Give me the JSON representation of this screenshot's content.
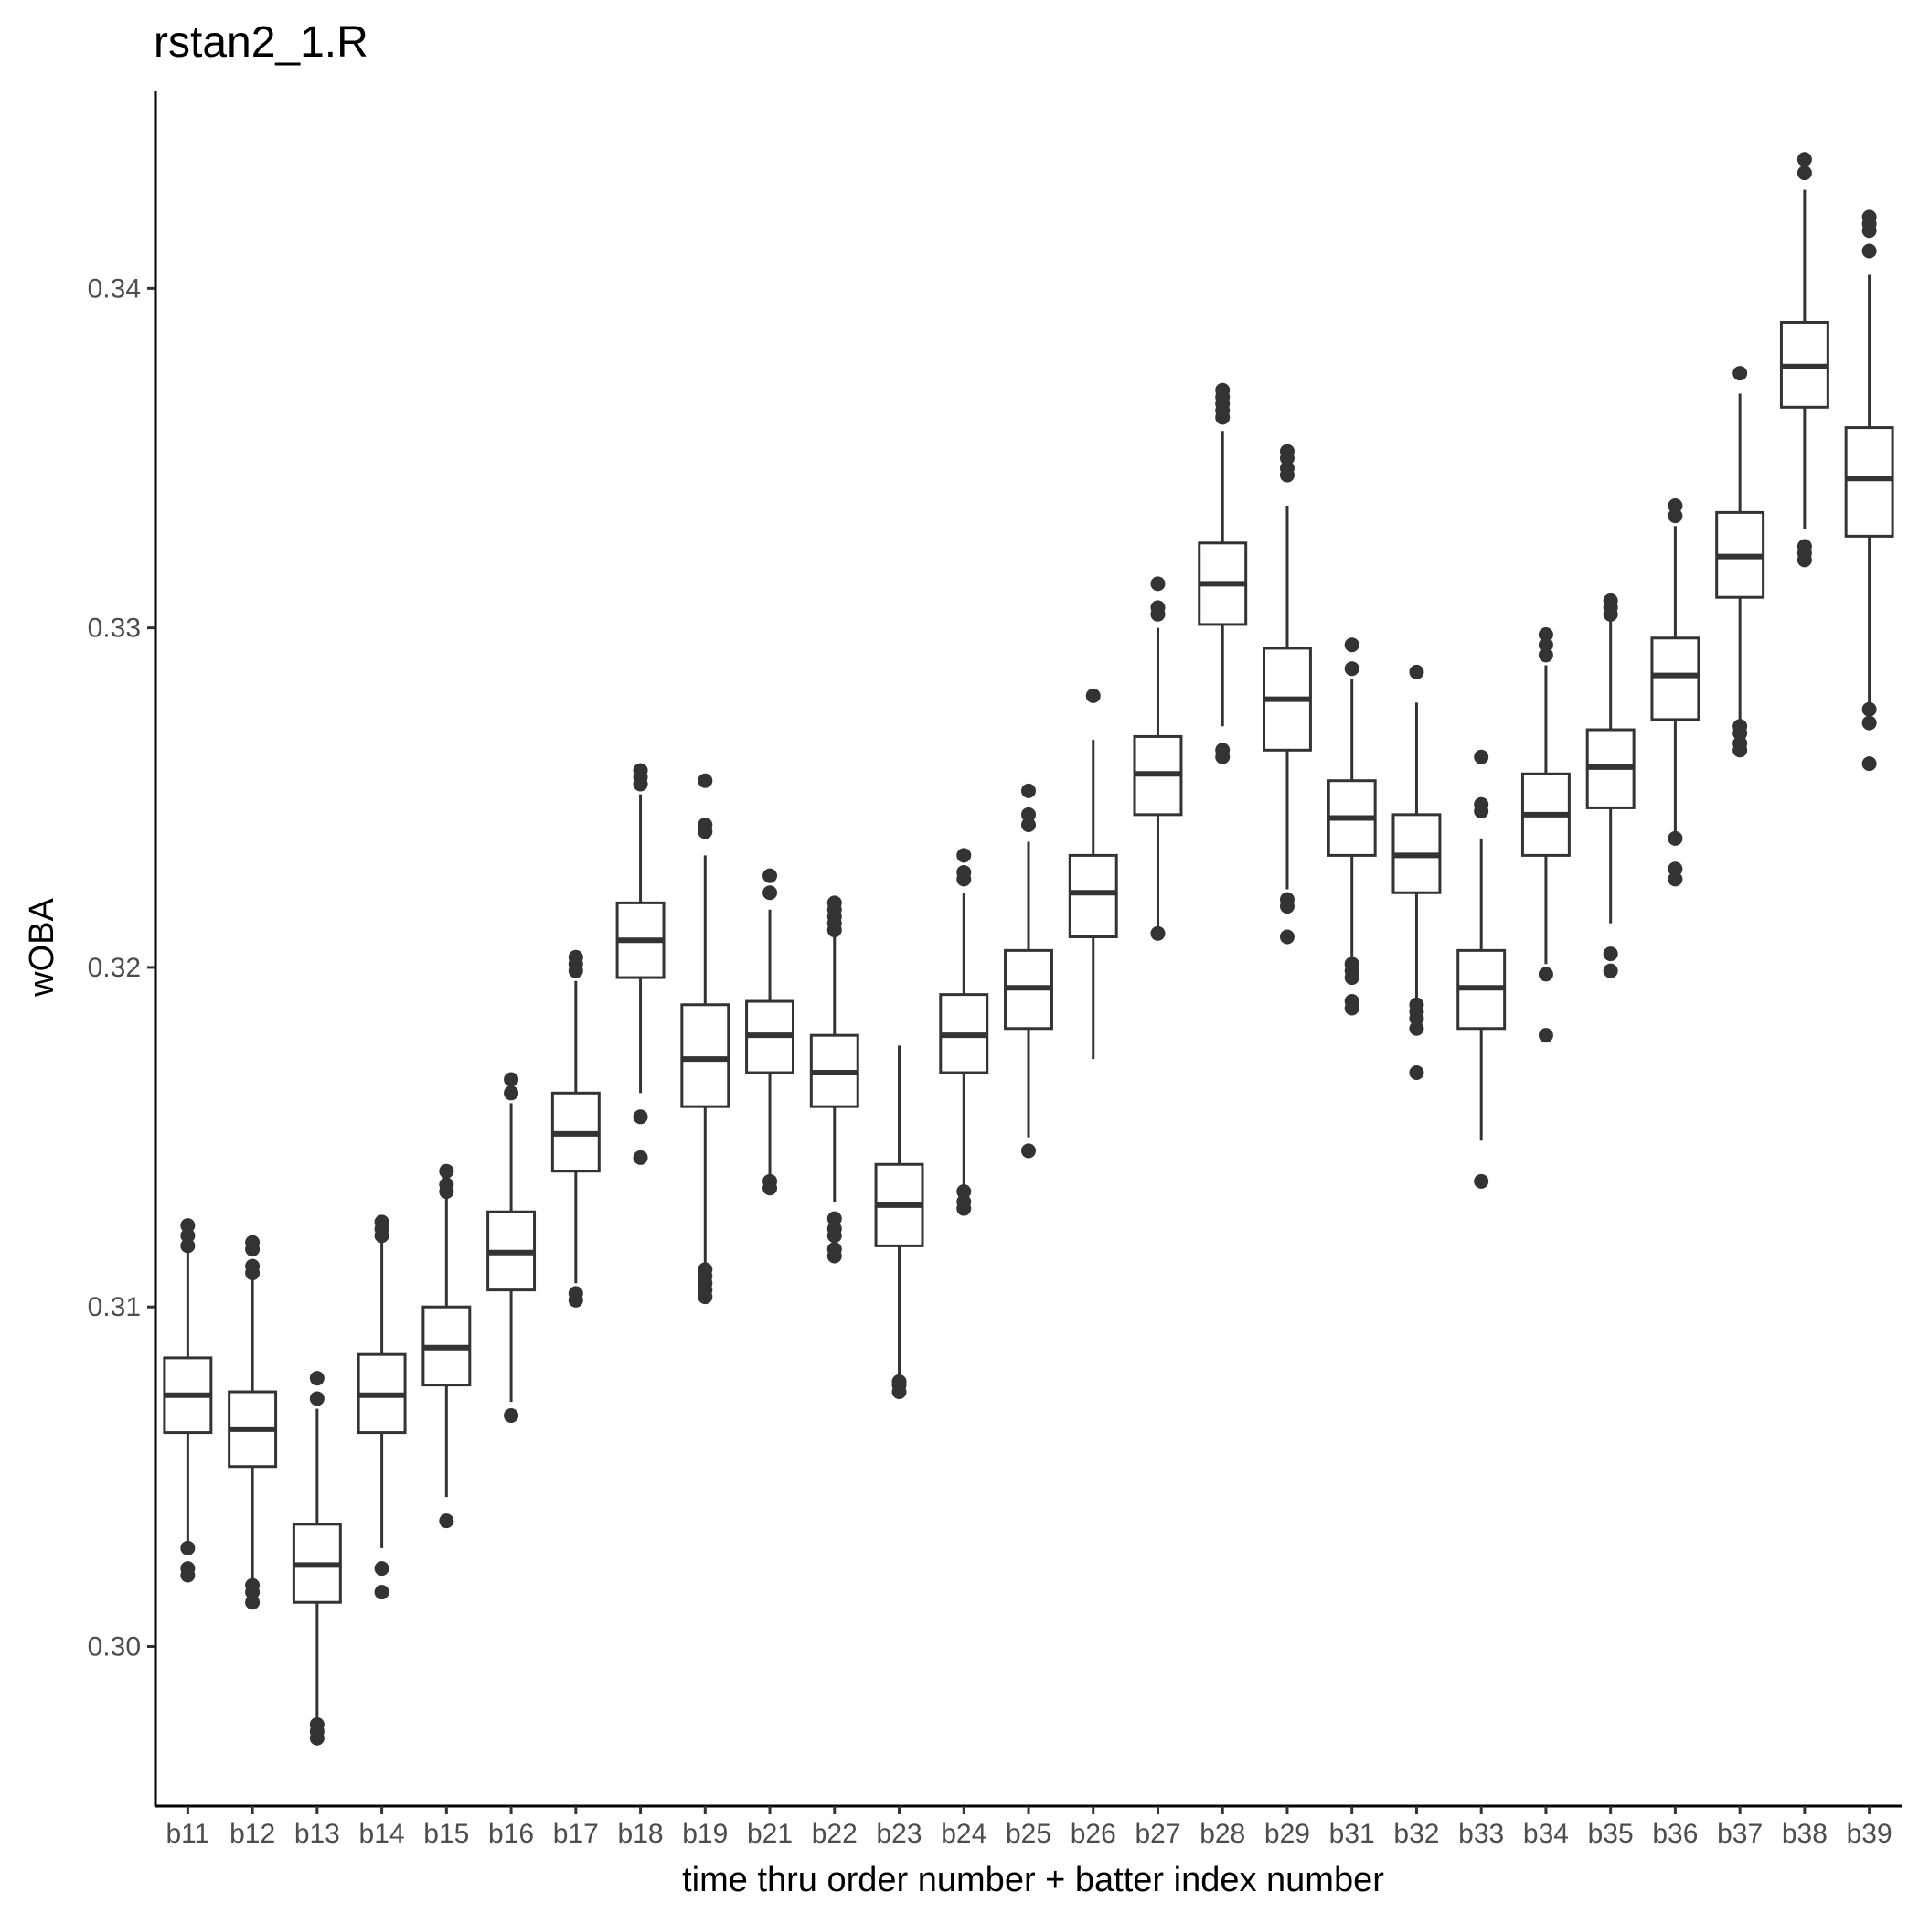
{
  "chart_data": {
    "type": "boxplot",
    "title": "rstan2_1.R",
    "xlabel": "time thru order number + batter index number",
    "ylabel": "wOBA",
    "ylim": [
      0.2953,
      0.3458
    ],
    "y_ticks": [
      0.3,
      0.31,
      0.32,
      0.33,
      0.34
    ],
    "y_tick_labels": [
      "0.30",
      "0.31",
      "0.32",
      "0.33",
      "0.34"
    ],
    "grid": false,
    "legend": "none",
    "colors": {
      "box_stroke": "#333333",
      "outlier": "#333333",
      "axis": "#000000",
      "tick_label": "#4d4d4d"
    },
    "categories": [
      "b11",
      "b12",
      "b13",
      "b14",
      "b15",
      "b16",
      "b17",
      "b18",
      "b19",
      "b21",
      "b22",
      "b23",
      "b24",
      "b25",
      "b26",
      "b27",
      "b28",
      "b29",
      "b31",
      "b32",
      "b33",
      "b34",
      "b35",
      "b36",
      "b37",
      "b38",
      "b39"
    ],
    "boxes": [
      {
        "q1": 0.3063,
        "median": 0.3074,
        "q3": 0.3085,
        "whisker_low": 0.3031,
        "whisker_high": 0.3116,
        "outliers": [
          0.3029,
          0.3023,
          0.3021,
          0.3118,
          0.3121,
          0.3124
        ]
      },
      {
        "q1": 0.3053,
        "median": 0.3064,
        "q3": 0.3075,
        "whisker_low": 0.302,
        "whisker_high": 0.3108,
        "outliers": [
          0.3018,
          0.3016,
          0.3013,
          0.311,
          0.3112,
          0.3117,
          0.3119
        ]
      },
      {
        "q1": 0.3013,
        "median": 0.3024,
        "q3": 0.3036,
        "whisker_low": 0.2978,
        "whisker_high": 0.307,
        "outliers": [
          0.2977,
          0.2975,
          0.2973,
          0.3073,
          0.3079
        ]
      },
      {
        "q1": 0.3063,
        "median": 0.3074,
        "q3": 0.3086,
        "whisker_low": 0.3029,
        "whisker_high": 0.3119,
        "outliers": [
          0.3023,
          0.3016,
          0.3121,
          0.3123,
          0.3125
        ]
      },
      {
        "q1": 0.3077,
        "median": 0.3088,
        "q3": 0.31,
        "whisker_low": 0.3044,
        "whisker_high": 0.3132,
        "outliers": [
          0.3037,
          0.3134,
          0.3136,
          0.314
        ]
      },
      {
        "q1": 0.3105,
        "median": 0.3116,
        "q3": 0.3128,
        "whisker_low": 0.3072,
        "whisker_high": 0.316,
        "outliers": [
          0.3068,
          0.3163,
          0.3167
        ]
      },
      {
        "q1": 0.314,
        "median": 0.3151,
        "q3": 0.3163,
        "whisker_low": 0.3107,
        "whisker_high": 0.3196,
        "outliers": [
          0.3102,
          0.3104,
          0.3199,
          0.3201,
          0.3203
        ]
      },
      {
        "q1": 0.3197,
        "median": 0.3208,
        "q3": 0.3219,
        "whisker_low": 0.3163,
        "whisker_high": 0.3251,
        "outliers": [
          0.3156,
          0.3144,
          0.3254,
          0.3256,
          0.3258
        ]
      },
      {
        "q1": 0.3159,
        "median": 0.3173,
        "q3": 0.3189,
        "whisker_low": 0.3113,
        "whisker_high": 0.3233,
        "outliers": [
          0.3103,
          0.3105,
          0.3107,
          0.3109,
          0.3111,
          0.324,
          0.3242,
          0.3255
        ]
      },
      {
        "q1": 0.3169,
        "median": 0.318,
        "q3": 0.319,
        "whisker_low": 0.3139,
        "whisker_high": 0.3217,
        "outliers": [
          0.3135,
          0.3137,
          0.3222,
          0.3227
        ]
      },
      {
        "q1": 0.3159,
        "median": 0.3169,
        "q3": 0.318,
        "whisker_low": 0.3131,
        "whisker_high": 0.3209,
        "outliers": [
          0.3115,
          0.3117,
          0.3121,
          0.3123,
          0.3126,
          0.3211,
          0.3213,
          0.3215,
          0.3217,
          0.3219
        ]
      },
      {
        "q1": 0.3118,
        "median": 0.313,
        "q3": 0.3142,
        "whisker_low": 0.308,
        "whisker_high": 0.3177,
        "outliers": [
          0.3075,
          0.3077,
          0.3078
        ]
      },
      {
        "q1": 0.3169,
        "median": 0.318,
        "q3": 0.3192,
        "whisker_low": 0.3136,
        "whisker_high": 0.3222,
        "outliers": [
          0.3129,
          0.3131,
          0.3134,
          0.3226,
          0.3228,
          0.3233
        ]
      },
      {
        "q1": 0.3182,
        "median": 0.3194,
        "q3": 0.3205,
        "whisker_low": 0.315,
        "whisker_high": 0.3237,
        "outliers": [
          0.3146,
          0.3242,
          0.3245,
          0.3252
        ]
      },
      {
        "q1": 0.3209,
        "median": 0.3222,
        "q3": 0.3233,
        "whisker_low": 0.3173,
        "whisker_high": 0.3267,
        "outliers": [
          0.328
        ]
      },
      {
        "q1": 0.3245,
        "median": 0.3257,
        "q3": 0.3268,
        "whisker_low": 0.3212,
        "whisker_high": 0.33,
        "outliers": [
          0.321,
          0.3304,
          0.3306,
          0.3313
        ]
      },
      {
        "q1": 0.3301,
        "median": 0.3313,
        "q3": 0.3325,
        "whisker_low": 0.3271,
        "whisker_high": 0.3358,
        "outliers": [
          0.3262,
          0.3264,
          0.3362,
          0.3364,
          0.3366,
          0.3368,
          0.337
        ]
      },
      {
        "q1": 0.3264,
        "median": 0.3279,
        "q3": 0.3294,
        "whisker_low": 0.3223,
        "whisker_high": 0.3336,
        "outliers": [
          0.3209,
          0.3218,
          0.322,
          0.3345,
          0.3347,
          0.335,
          0.3352
        ]
      },
      {
        "q1": 0.3233,
        "median": 0.3244,
        "q3": 0.3255,
        "whisker_low": 0.3202,
        "whisker_high": 0.3285,
        "outliers": [
          0.3188,
          0.319,
          0.3197,
          0.3199,
          0.3201,
          0.3288,
          0.3295
        ]
      },
      {
        "q1": 0.3222,
        "median": 0.3233,
        "q3": 0.3245,
        "whisker_low": 0.319,
        "whisker_high": 0.3278,
        "outliers": [
          0.3169,
          0.3182,
          0.3185,
          0.3187,
          0.3189,
          0.3287
        ]
      },
      {
        "q1": 0.3182,
        "median": 0.3194,
        "q3": 0.3205,
        "whisker_low": 0.3149,
        "whisker_high": 0.3238,
        "outliers": [
          0.3137,
          0.3246,
          0.3248,
          0.3262
        ]
      },
      {
        "q1": 0.3233,
        "median": 0.3245,
        "q3": 0.3257,
        "whisker_low": 0.3201,
        "whisker_high": 0.3289,
        "outliers": [
          0.318,
          0.3198,
          0.3292,
          0.3295,
          0.3298
        ]
      },
      {
        "q1": 0.3247,
        "median": 0.3259,
        "q3": 0.327,
        "whisker_low": 0.3213,
        "whisker_high": 0.3302,
        "outliers": [
          0.3199,
          0.3204,
          0.3304,
          0.3306,
          0.3308
        ]
      },
      {
        "q1": 0.3273,
        "median": 0.3286,
        "q3": 0.3297,
        "whisker_low": 0.324,
        "whisker_high": 0.333,
        "outliers": [
          0.3226,
          0.3229,
          0.3238,
          0.3333,
          0.3336
        ]
      },
      {
        "q1": 0.3309,
        "median": 0.3321,
        "q3": 0.3334,
        "whisker_low": 0.3273,
        "whisker_high": 0.3369,
        "outliers": [
          0.3264,
          0.3266,
          0.3269,
          0.3271,
          0.3375
        ]
      },
      {
        "q1": 0.3365,
        "median": 0.3377,
        "q3": 0.339,
        "whisker_low": 0.3329,
        "whisker_high": 0.3429,
        "outliers": [
          0.332,
          0.3322,
          0.3324,
          0.3434,
          0.3438
        ]
      },
      {
        "q1": 0.3327,
        "median": 0.3344,
        "q3": 0.3359,
        "whisker_low": 0.3278,
        "whisker_high": 0.3404,
        "outliers": [
          0.326,
          0.3272,
          0.3276,
          0.3411,
          0.3417,
          0.3419,
          0.3421
        ]
      }
    ]
  }
}
